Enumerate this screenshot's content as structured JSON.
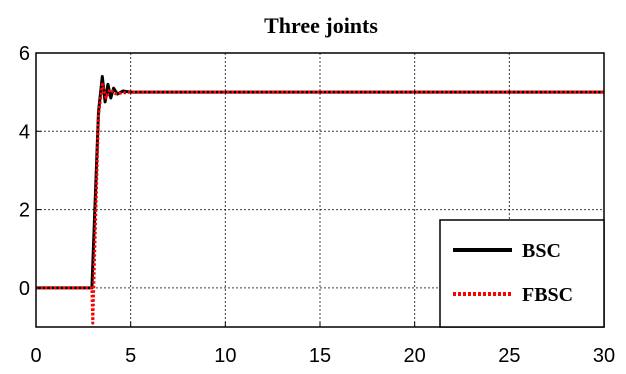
{
  "chart_data": {
    "type": "line",
    "title": "Three joints",
    "xlabel": "",
    "ylabel": "",
    "xlim": [
      0,
      30
    ],
    "ylim": [
      -1,
      6
    ],
    "x_ticks": [
      0,
      5,
      10,
      15,
      20,
      25,
      30
    ],
    "y_ticks": [
      0,
      2,
      4,
      6
    ],
    "grid": true,
    "legend_position": "bottom-right",
    "series": [
      {
        "name": "BSC",
        "color": "#000000",
        "style": "solid",
        "points": [
          [
            0,
            0
          ],
          [
            2.95,
            0
          ],
          [
            3.3,
            4.5
          ],
          [
            3.5,
            5.4
          ],
          [
            3.65,
            4.75
          ],
          [
            3.8,
            5.2
          ],
          [
            3.95,
            4.85
          ],
          [
            4.1,
            5.1
          ],
          [
            4.3,
            4.95
          ],
          [
            4.6,
            5.03
          ],
          [
            5,
            5
          ],
          [
            30,
            5
          ]
        ]
      },
      {
        "name": "FBSC",
        "color": "#ff0000",
        "style": "dotted",
        "points": [
          [
            0,
            0
          ],
          [
            2.95,
            0
          ],
          [
            3.0,
            -0.9
          ],
          [
            3.05,
            0
          ],
          [
            3.3,
            4.4
          ],
          [
            3.5,
            5.2
          ],
          [
            3.7,
            4.85
          ],
          [
            3.9,
            5.07
          ],
          [
            4.2,
            4.96
          ],
          [
            5,
            5
          ],
          [
            30,
            5
          ]
        ]
      }
    ]
  }
}
